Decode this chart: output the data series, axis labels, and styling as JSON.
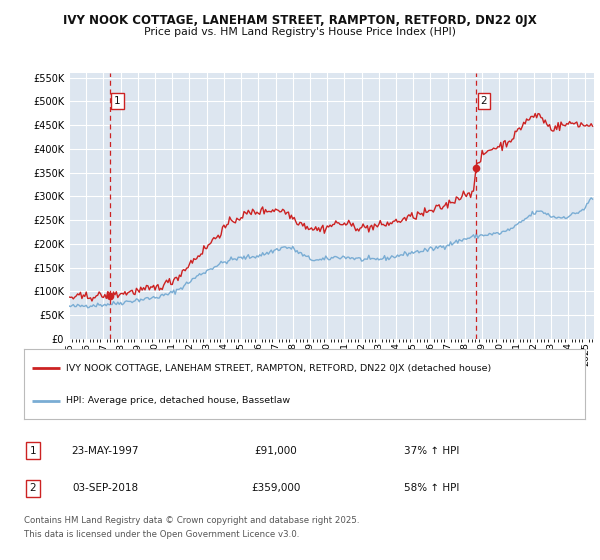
{
  "title_line1": "IVY NOOK COTTAGE, LANEHAM STREET, RAMPTON, RETFORD, DN22 0JX",
  "title_line2": "Price paid vs. HM Land Registry's House Price Index (HPI)",
  "ylim": [
    0,
    560000
  ],
  "yticks": [
    0,
    50000,
    100000,
    150000,
    200000,
    250000,
    300000,
    350000,
    400000,
    450000,
    500000,
    550000
  ],
  "xlim_start": 1995.0,
  "xlim_end": 2025.5,
  "bg_color": "#dde6f0",
  "grid_color": "#ffffff",
  "hpi_color": "#7aadd4",
  "price_color": "#cc2222",
  "vline_color": "#cc2222",
  "marker_color": "#cc2222",
  "sale1_date_num": 1997.38,
  "sale1_price": 91000,
  "sale1_label": "1",
  "sale1_display": "23-MAY-1997",
  "sale1_amount": "£91,000",
  "sale1_hpi": "37% ↑ HPI",
  "sale2_date_num": 2018.67,
  "sale2_price": 359000,
  "sale2_label": "2",
  "sale2_display": "03-SEP-2018",
  "sale2_amount": "£359,000",
  "sale2_hpi": "58% ↑ HPI",
  "legend_label_price": "IVY NOOK COTTAGE, LANEHAM STREET, RAMPTON, RETFORD, DN22 0JX (detached house)",
  "legend_label_hpi": "HPI: Average price, detached house, Bassetlaw",
  "footer_line1": "Contains HM Land Registry data © Crown copyright and database right 2025.",
  "footer_line2": "This data is licensed under the Open Government Licence v3.0.",
  "xtick_years": [
    1995,
    1996,
    1997,
    1998,
    1999,
    2000,
    2001,
    2002,
    2003,
    2004,
    2005,
    2006,
    2007,
    2008,
    2009,
    2010,
    2011,
    2012,
    2013,
    2014,
    2015,
    2016,
    2017,
    2018,
    2019,
    2020,
    2021,
    2022,
    2023,
    2024,
    2025
  ]
}
